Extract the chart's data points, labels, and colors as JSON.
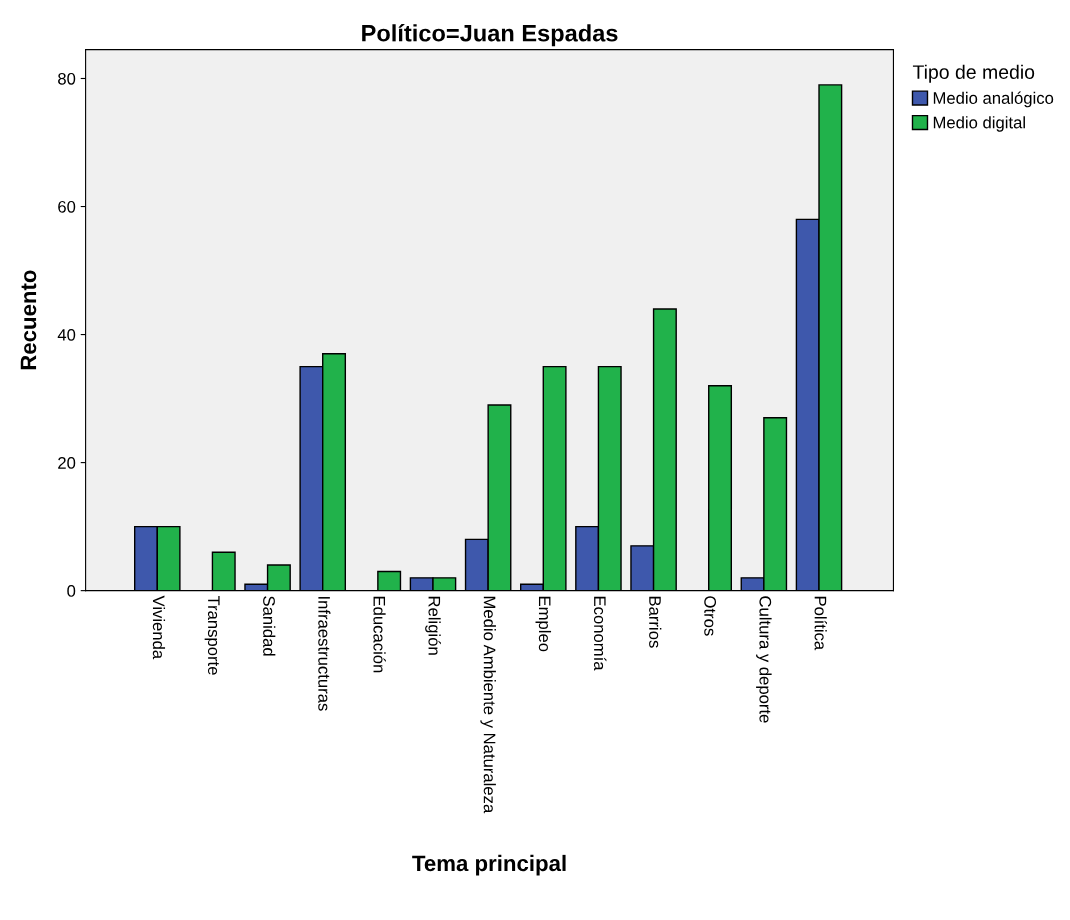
{
  "chart_data": {
    "type": "bar",
    "title": "Político=Juan Espadas",
    "xlabel": "Tema principal",
    "ylabel": "Recuento",
    "legend_title": "Tipo de medio",
    "legend": "top right",
    "categories": [
      "Vivienda",
      "Transporte",
      "Sanidad",
      "Infraestructuras",
      "Educación",
      "Religión",
      "Medio Ambiente y Naturaleza",
      "Empleo",
      "Economía",
      "Barrios",
      "Otros",
      "Cultura y deporte",
      "Política"
    ],
    "series": [
      {
        "name": "Medio analógico",
        "color": "#3e58ac",
        "values": [
          10,
          0,
          1,
          35,
          0,
          2,
          8,
          1,
          10,
          7,
          0,
          2,
          58
        ]
      },
      {
        "name": "Medio digital",
        "color": "#21b24b",
        "values": [
          10,
          6,
          4,
          37,
          3,
          2,
          29,
          35,
          35,
          44,
          32,
          27,
          79
        ]
      }
    ],
    "ylim": [
      0,
      84.5
    ],
    "yticks": [
      0,
      20,
      40,
      60,
      80
    ],
    "grid": false
  }
}
